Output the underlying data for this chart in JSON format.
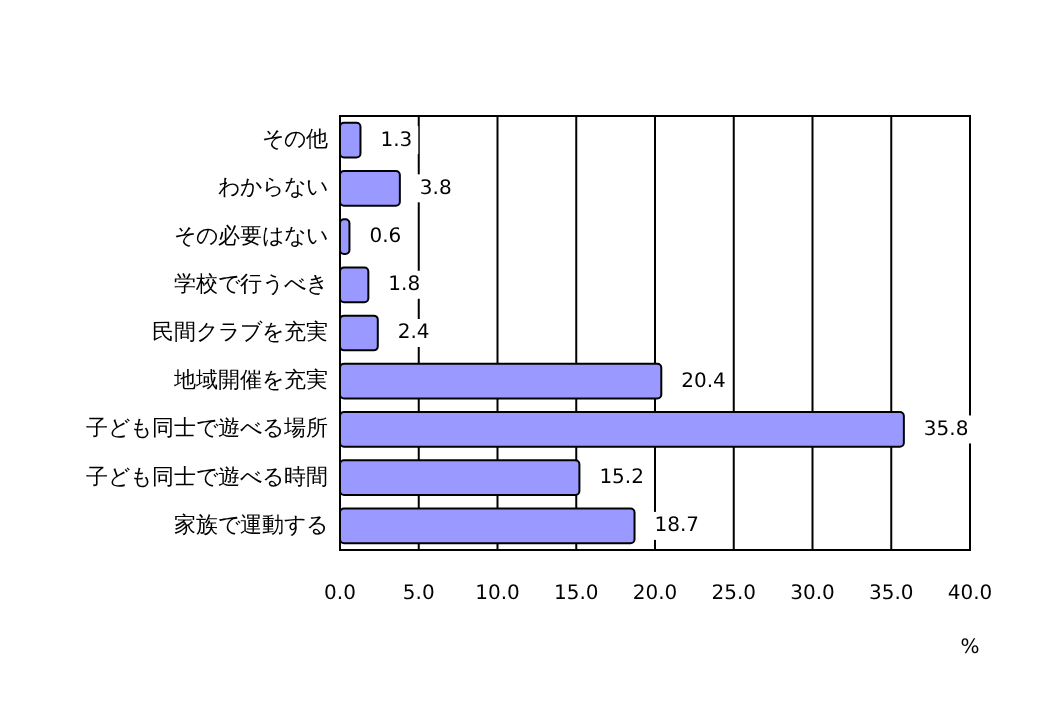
{
  "chart_data": {
    "type": "bar",
    "orientation": "horizontal",
    "categories": [
      "その他",
      "わからない",
      "その必要はない",
      "学校で行うべき",
      "民間クラブを充実",
      "地域開催を充実",
      "子ども同士で遊べる場所",
      "子ども同士で遊べる時間",
      "家族で運動する"
    ],
    "values": [
      1.3,
      3.8,
      0.6,
      1.8,
      2.4,
      20.4,
      35.8,
      15.2,
      18.7
    ],
    "color": "#9999ff",
    "data_labels": true,
    "xlabel": "%",
    "xlim": [
      0,
      40
    ],
    "xticks": [
      {
        "value": 0,
        "label": "0.0"
      },
      {
        "value": 5,
        "label": "5.0"
      },
      {
        "value": 10,
        "label": "10.0"
      },
      {
        "value": 15,
        "label": "15.0"
      },
      {
        "value": 20,
        "label": "20.0"
      },
      {
        "value": 25,
        "label": "25.0"
      },
      {
        "value": 30,
        "label": "30.0"
      },
      {
        "value": 35,
        "label": "35.0"
      },
      {
        "value": 40,
        "label": "40.0"
      }
    ],
    "grid": "x"
  }
}
